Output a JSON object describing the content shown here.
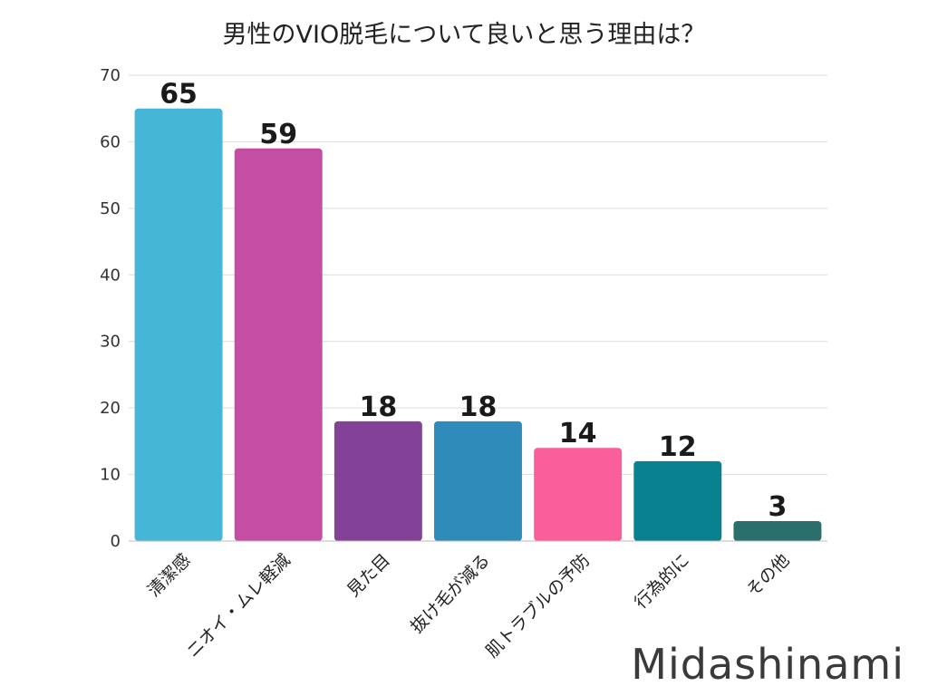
{
  "chart_data": {
    "type": "bar",
    "title": "男性のVIO脱毛について良いと思う理由は？",
    "categories": [
      "清潔感",
      "ニオイ・ムレ軽減",
      "見た目",
      "抜け毛が減る",
      "肌トラブルの予防",
      "行為的に",
      "その他"
    ],
    "values": [
      65,
      59,
      18,
      18,
      14,
      12,
      3
    ],
    "colors": [
      "#45b6d6",
      "#c44fa2",
      "#844198",
      "#2e8bba",
      "#fb5f9b",
      "#0a818f",
      "#2a6f6b"
    ],
    "ylim": [
      0,
      70
    ],
    "yticks": [
      0,
      10,
      20,
      30,
      40,
      50,
      60,
      70
    ],
    "grid": true,
    "data_labels": true
  },
  "watermark": "Midashinami"
}
